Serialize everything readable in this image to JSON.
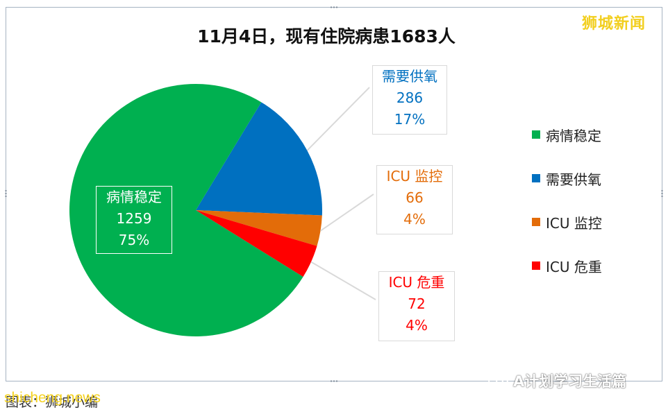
{
  "watermark_top": "狮城新闻",
  "chart_data": {
    "type": "pie",
    "title": "11月4日，现有住院病患1683人",
    "total": 1683,
    "slices": [
      {
        "label": "病情稳定",
        "value": 1259,
        "percent": "75%",
        "color": "#00b050"
      },
      {
        "label": "需要供氧",
        "value": 286,
        "percent": "17%",
        "color": "#0070c0"
      },
      {
        "label": "ICU 监控",
        "value": 66,
        "percent": "4%",
        "color": "#e36c09"
      },
      {
        "label": "ICU 危重",
        "value": 72,
        "percent": "4%",
        "color": "#ff0000"
      }
    ],
    "legend": {
      "placement": "right",
      "items": [
        "病情稳定",
        "需要供氧",
        "ICU 监控",
        "ICU 危重"
      ]
    }
  },
  "footer": {
    "source": "图表：狮城小编",
    "site_watermark": "shicheng.news",
    "account_watermark": "A计划学习生活篇"
  }
}
